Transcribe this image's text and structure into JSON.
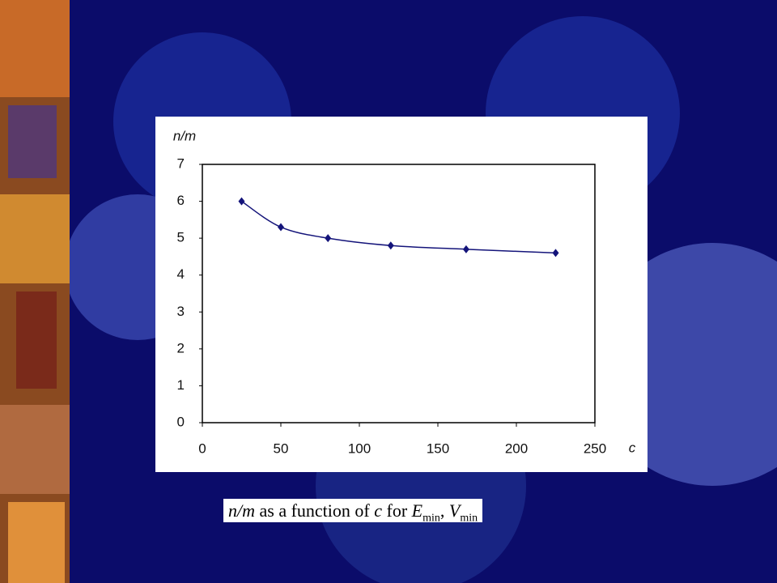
{
  "chart_data": {
    "type": "line",
    "ylabel": "n/m",
    "xlabel": "c",
    "x": [
      25,
      50,
      80,
      120,
      168,
      225
    ],
    "series": [
      {
        "color": "#14147a",
        "values": [
          6.0,
          5.3,
          5.0,
          4.8,
          4.7,
          4.6
        ]
      }
    ],
    "xlim": [
      0,
      250
    ],
    "xticks": [
      0,
      50,
      100,
      150,
      200,
      250
    ],
    "ylim": [
      0,
      7
    ],
    "yticks": [
      0,
      1,
      2,
      3,
      4,
      5,
      6,
      7
    ],
    "grid": false
  },
  "caption": {
    "parts": [
      "n/m",
      " as a function of ",
      "c",
      " for ",
      "E",
      "min",
      ", ",
      "V",
      "min"
    ]
  }
}
